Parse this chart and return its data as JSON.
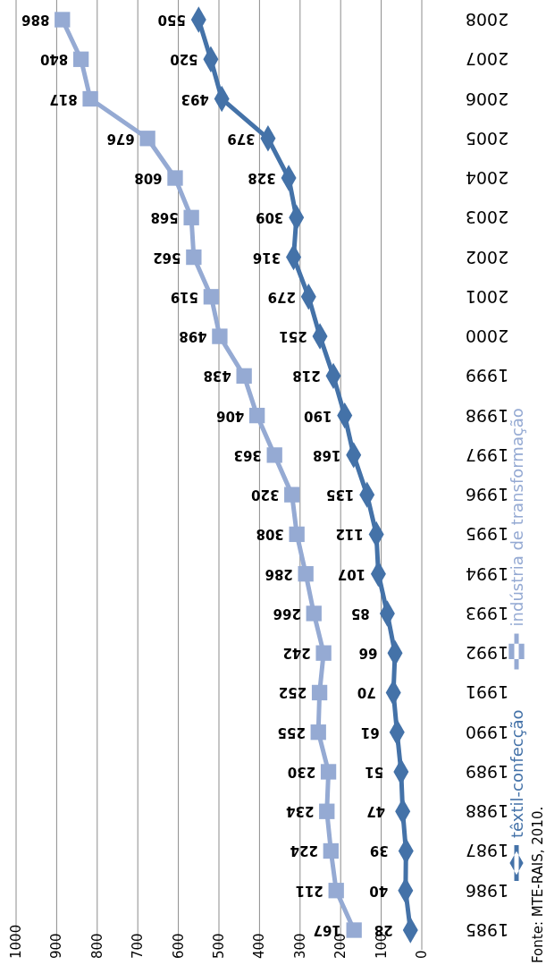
{
  "chart_data": {
    "type": "line",
    "categories": [
      "2008",
      "2007",
      "2006",
      "2005",
      "2004",
      "2003",
      "2002",
      "2001",
      "2000",
      "1999",
      "1998",
      "1997",
      "1996",
      "1995",
      "1994",
      "1993",
      "1992",
      "1991",
      "1990",
      "1989",
      "1988",
      "1987",
      "1986",
      "1985"
    ],
    "series": [
      {
        "name": "têxtil-confecção",
        "color": "#4472a8",
        "marker": "diamond",
        "values": [
          550,
          520,
          493,
          379,
          328,
          309,
          316,
          279,
          251,
          218,
          190,
          168,
          135,
          112,
          107,
          85,
          66,
          70,
          61,
          51,
          47,
          39,
          40,
          28
        ]
      },
      {
        "name": "indústria de transformação",
        "color": "#95aad3",
        "marker": "square",
        "values": [
          886,
          840,
          817,
          676,
          608,
          568,
          562,
          519,
          498,
          438,
          406,
          363,
          320,
          308,
          286,
          266,
          242,
          252,
          255,
          230,
          234,
          224,
          211,
          167
        ]
      }
    ],
    "orientation": "horizontal",
    "xlim": [
      1000,
      0
    ],
    "xticks": [
      0,
      100,
      200,
      300,
      400,
      500,
      600,
      700,
      800,
      900,
      1000
    ],
    "grid": "x",
    "data_labels": true,
    "legend": "right",
    "annotations": [
      "Fonte: MTE-RAIS, 2010."
    ]
  }
}
